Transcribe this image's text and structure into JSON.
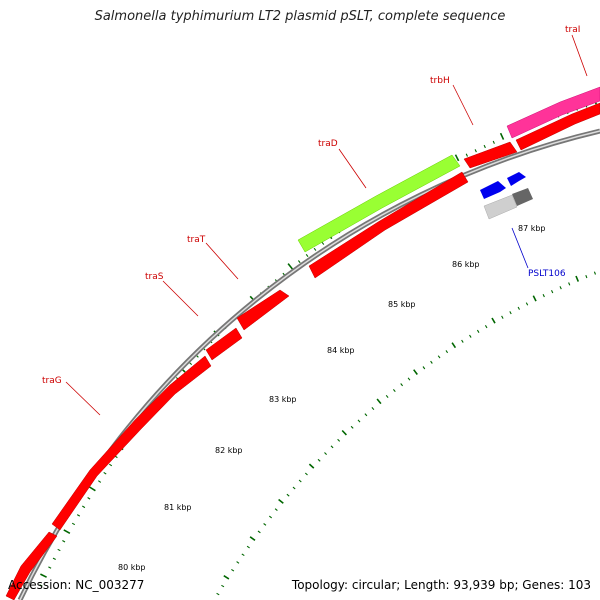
{
  "title": "Salmonella typhimurium LT2 plasmid pSLT, complete sequence",
  "footer": {
    "accession": "Accession: NC_003277",
    "summary": "Topology: circular; Length: 93,939 bp; Genes: 103"
  },
  "scale": {
    "tick_labels": [
      "80 kbp",
      "81 kbp",
      "82 kbp",
      "83 kbp",
      "84 kbp",
      "85 kbp",
      "86 kbp",
      "87 kbp"
    ]
  },
  "gene_labels": [
    "traG",
    "traS",
    "traT",
    "traD",
    "trbH",
    "traI",
    "PSLT106"
  ],
  "colors": {
    "backbone": "#888888",
    "cds": "#ff0000",
    "tra_d": "#99ff33",
    "tra_i": "#ff3399",
    "orf": "#0000ee",
    "gray_feature": "#bbbbbb",
    "tick": "#006600",
    "label_red": "#cc0000",
    "label_blue": "#0000cc"
  }
}
